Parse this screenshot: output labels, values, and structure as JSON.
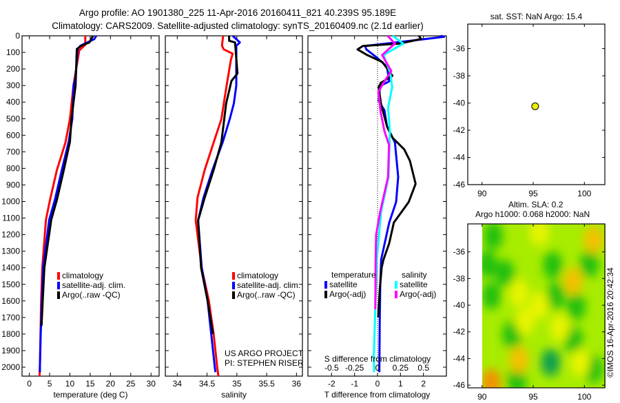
{
  "header": {
    "title_line1": "Argo profile: AO 1901380_225 11-Apr-2016 20160411_821 40.239S 95.189E",
    "title_line2": "Climatology: CARS2009. Satellite-adjusted climatology: synTS_20160409.nc (2.1d earlier)"
  },
  "credits": {
    "project": "US ARGO PROJECT",
    "pi": "PI: STEPHEN RISER",
    "copyright": "©IMOS 16-Apr-2016 20:42:34"
  },
  "colors": {
    "climatology": "#ff0000",
    "satellite": "#0000ff",
    "argo": "#000000",
    "sal_satellite": "#00ffff",
    "sal_argo": "#ff00ff",
    "marker": "#f0f000"
  },
  "chart_data": [
    {
      "type": "line",
      "id": "temperature",
      "xlabel": "temperature (deg C)",
      "ylabel": "",
      "xlim": [
        -1.8,
        32
      ],
      "ylim": [
        2054,
        0
      ],
      "xticks": [
        0,
        5,
        10,
        15,
        20,
        25,
        30
      ],
      "xtick_labels": [
        "0",
        "5",
        "10",
        "15",
        "20",
        "25",
        "30"
      ],
      "yticks": [
        0,
        100,
        200,
        300,
        400,
        500,
        600,
        700,
        800,
        900,
        1000,
        1100,
        1200,
        1300,
        1400,
        1500,
        1600,
        1700,
        1800,
        1900,
        2000
      ],
      "ytick_labels": [
        "0",
        "100",
        "200",
        "300",
        "400",
        "500",
        "600",
        "700",
        "800",
        "900",
        "1000",
        "1100",
        "1200",
        "1300",
        "1400",
        "1500",
        "1600",
        "1700",
        "1800",
        "1900",
        "2000"
      ],
      "legend": [
        "climatology",
        "satellite-adj. clim.",
        "Argo(..raw -QC)"
      ],
      "series": [
        {
          "name": "climatology",
          "color": "#ff0000",
          "depth": [
            0,
            54,
            88,
            295,
            503,
            644,
            810,
            990,
            1110,
            1400,
            1600,
            2000,
            2054
          ],
          "values": [
            13.8,
            13.8,
            12.3,
            10.9,
            10.0,
            8.9,
            6.8,
            5.1,
            4.1,
            3.2,
            2.9,
            2.6,
            2.5
          ]
        },
        {
          "name": "satellite-adj. clim.",
          "color": "#0000ff",
          "depth": [
            0,
            20,
            40,
            60,
            80,
            250,
            300,
            500,
            640,
            810,
            990,
            1110,
            1400,
            1600,
            1800,
            2000,
            2030
          ],
          "values": [
            16.5,
            16.0,
            14.3,
            12.6,
            11.9,
            11.4,
            10.9,
            10.6,
            9.7,
            8.0,
            6.3,
            4.9,
            3.4,
            3.1,
            2.8,
            2.6,
            2.6
          ]
        },
        {
          "name": "Argo(..raw -QC)",
          "color": "#000000",
          "depth": [
            0,
            40,
            60,
            80,
            300,
            500,
            640,
            810,
            990,
            1110,
            1400,
            1600,
            1750
          ],
          "values": [
            15.7,
            14.8,
            12.8,
            11.7,
            11.4,
            10.4,
            10.0,
            8.5,
            6.8,
            5.4,
            3.7,
            3.3,
            3.0
          ]
        }
      ]
    },
    {
      "type": "line",
      "id": "salinity",
      "xlabel": "salinity",
      "xlim": [
        33.8,
        36.1
      ],
      "ylim": [
        2054,
        0
      ],
      "xticks": [
        34,
        34.5,
        35,
        35.5,
        36
      ],
      "xtick_labels": [
        "34",
        "34.5",
        "35",
        "35.5",
        "36"
      ],
      "legend": [
        "climatology",
        "satellite-adj. clim.",
        "Argo(..raw -QC)"
      ],
      "series": [
        {
          "name": "climatology",
          "color": "#ff0000",
          "depth": [
            0,
            60,
            82,
            108,
            144,
            296,
            504,
            644,
            810,
            977,
            1114,
            1400,
            1600,
            1800,
            2000,
            2054
          ],
          "values": [
            34.77,
            34.75,
            34.78,
            34.93,
            34.9,
            34.83,
            34.74,
            34.61,
            34.46,
            34.34,
            34.31,
            34.41,
            34.53,
            34.61,
            34.67,
            34.69
          ]
        },
        {
          "name": "satellite-adj. clim.",
          "color": "#0000ff",
          "depth": [
            0,
            40,
            60,
            300,
            408,
            504,
            644,
            810,
            977,
            1114,
            1400,
            1600,
            1800,
            2000,
            2030
          ],
          "values": [
            34.93,
            35.05,
            34.99,
            34.99,
            34.95,
            34.88,
            34.76,
            34.59,
            34.44,
            34.35,
            34.41,
            34.51,
            34.57,
            34.63,
            34.64
          ]
        },
        {
          "name": "Argo(..raw -QC)",
          "color": "#000000",
          "depth": [
            0,
            30,
            40,
            227,
            272,
            408,
            644,
            810,
            977,
            1114,
            1400,
            1600,
            1800
          ],
          "values": [
            34.87,
            34.87,
            34.97,
            35.01,
            34.91,
            34.82,
            34.74,
            34.61,
            34.46,
            34.35,
            34.4,
            34.51,
            34.6
          ]
        }
      ]
    },
    {
      "type": "line",
      "id": "difference",
      "xlabel": "T difference from climatology",
      "x2label": "S difference from climatology",
      "xlim": [
        -3.03,
        3.0
      ],
      "x2lim": [
        -0.7575,
        0.75
      ],
      "ylim": [
        2054,
        0
      ],
      "xticks": [
        -2,
        -1,
        0,
        1,
        2
      ],
      "xtick_labels": [
        "-2",
        "-1",
        "0",
        "1",
        "2"
      ],
      "x2ticks": [
        -0.5,
        -0.25,
        0,
        0.25,
        0.5
      ],
      "x2tick_labels": [
        "-0.5",
        "-0.25",
        "0",
        "0.25",
        "0.5"
      ],
      "legend_groups": [
        {
          "title": "temperature",
          "items": [
            "satellite",
            "Argo(-adj)"
          ]
        },
        {
          "title": "salinity",
          "items": [
            "satellite",
            "Argo(-adj)"
          ]
        }
      ],
      "series": [
        {
          "name": "temperature satellite",
          "quantity": "T",
          "color": "#0000ff",
          "depth": [
            0,
            6,
            33,
            61,
            82,
            130,
            186,
            275,
            303,
            393,
            449,
            546,
            644,
            852,
            1003,
            1127,
            1350,
            1500,
            1700,
            2000,
            2030
          ],
          "values": [
            2.76,
            2.9,
            1.26,
            -0.54,
            -0.49,
            -0.04,
            0.41,
            0.51,
            0.11,
            0.05,
            0.3,
            0.41,
            0.76,
            0.9,
            0.81,
            0.51,
            0.16,
            0.12,
            0.1,
            0.08,
            0.08
          ]
        },
        {
          "name": "temperature Argo(-adj)",
          "quantity": "T",
          "color": "#000000",
          "depth": [
            0,
            19,
            47,
            61,
            82,
            116,
            158,
            241,
            283,
            310,
            408,
            546,
            616,
            685,
            754,
            893,
            1003,
            1127,
            1252,
            1350,
            1400,
            1530,
            1700
          ],
          "values": [
            1.8,
            1.9,
            0.96,
            -0.64,
            -0.87,
            -0.45,
            0.21,
            0.65,
            0.15,
            0.05,
            0.15,
            0.41,
            0.66,
            1.16,
            1.41,
            1.66,
            1.36,
            0.71,
            0.51,
            0.26,
            0.18,
            0.1,
            0.03
          ]
        },
        {
          "name": "salinity satellite",
          "quantity": "S",
          "color": "#00ffff",
          "depth": [
            0,
            47,
            116,
            227,
            310,
            435,
            574,
            852,
            1060,
            1350,
            1600,
            1900,
            2030
          ],
          "values": [
            0.165,
            0.28,
            0.065,
            0.14,
            0.16,
            0.115,
            0.135,
            0.12,
            0.04,
            -0.008,
            -0.022,
            -0.038,
            -0.038
          ]
        },
        {
          "name": "salinity Argo(-adj)",
          "quantity": "S",
          "color": "#ff00ff",
          "depth": [
            0,
            47,
            116,
            213,
            262,
            338,
            463,
            574,
            658,
            852,
            1060,
            1200,
            1400,
            1500,
            1650
          ],
          "values": [
            0.11,
            0.19,
            0.05,
            0.15,
            0.09,
            0.01,
            0.035,
            0.075,
            0.125,
            0.115,
            0.03,
            -0.015,
            -0.022,
            -0.022,
            -0.025
          ]
        }
      ]
    },
    {
      "type": "scatter",
      "id": "location-map",
      "title": "sat. SST: NaN Argo: 15.4",
      "xlim": [
        88.6,
        102.0
      ],
      "ylim": [
        -46.0,
        -34.2
      ],
      "xticks": [
        90,
        95,
        100
      ],
      "xtick_labels": [
        "90",
        "95",
        "100"
      ],
      "yticks": [
        -36,
        -38,
        -40,
        -42,
        -44,
        -46
      ],
      "ytick_labels": [
        "-36",
        "-38",
        "-40",
        "-42",
        "-44",
        "-46"
      ],
      "points": [
        {
          "lon": 95.189,
          "lat": -40.239
        }
      ]
    },
    {
      "type": "heatmap",
      "id": "sla-map",
      "title_line1": "Altim. SLA: 0.2",
      "title_line2": "Argo h1000: 0.068 h2000: NaN",
      "xlim": [
        88.6,
        102.0
      ],
      "ylim": [
        -46.2,
        -33.9
      ],
      "data_lon_range": [
        90,
        102
      ],
      "xticks": [
        90,
        95,
        100
      ],
      "xtick_labels": [
        "90",
        "95",
        "100"
      ],
      "yticks": [
        -36,
        -38,
        -40,
        -42,
        -44,
        -46
      ],
      "ytick_labels": [
        "-36",
        "-38",
        "-40",
        "-42",
        "-44",
        "-46"
      ],
      "anomalies": [
        {
          "lon": 91.1,
          "lat": -34.8,
          "level": "low"
        },
        {
          "lon": 96.9,
          "lat": -37.0,
          "level": "low"
        },
        {
          "lon": 97.2,
          "lat": -39.3,
          "level": "low"
        },
        {
          "lon": 99.2,
          "lat": -40.1,
          "level": "low"
        },
        {
          "lon": 92.9,
          "lat": -42.2,
          "level": "low"
        },
        {
          "lon": 96.7,
          "lat": -44.3,
          "level": "lowest"
        },
        {
          "lon": 93.4,
          "lat": -45.7,
          "level": "low"
        },
        {
          "lon": 100.9,
          "lat": -44.8,
          "level": "low"
        },
        {
          "lon": 90.9,
          "lat": -39.3,
          "level": "low"
        },
        {
          "lon": 92.2,
          "lat": -37.6,
          "level": "low"
        },
        {
          "lon": 100.5,
          "lat": -36.9,
          "level": "low"
        },
        {
          "lon": 98.9,
          "lat": -42.6,
          "level": "low"
        },
        {
          "lon": 90.5,
          "lat": -36.9,
          "level": "low"
        },
        {
          "lon": 100.9,
          "lat": -35.1,
          "level": "high"
        },
        {
          "lon": 98.9,
          "lat": -38.2,
          "level": "high"
        },
        {
          "lon": 95.6,
          "lat": -40.0,
          "level": "mid"
        },
        {
          "lon": 97.6,
          "lat": -41.7,
          "level": "mid"
        },
        {
          "lon": 93.6,
          "lat": -44.1,
          "level": "high"
        },
        {
          "lon": 90.9,
          "lat": -45.8,
          "level": "highest"
        },
        {
          "lon": 99.6,
          "lat": -44.3,
          "level": "mid"
        },
        {
          "lon": 93.6,
          "lat": -39.1,
          "level": "mid"
        },
        {
          "lon": 95.6,
          "lat": -34.5,
          "level": "mid"
        },
        {
          "lon": 94.2,
          "lat": -41.2,
          "level": "mid"
        }
      ]
    }
  ]
}
